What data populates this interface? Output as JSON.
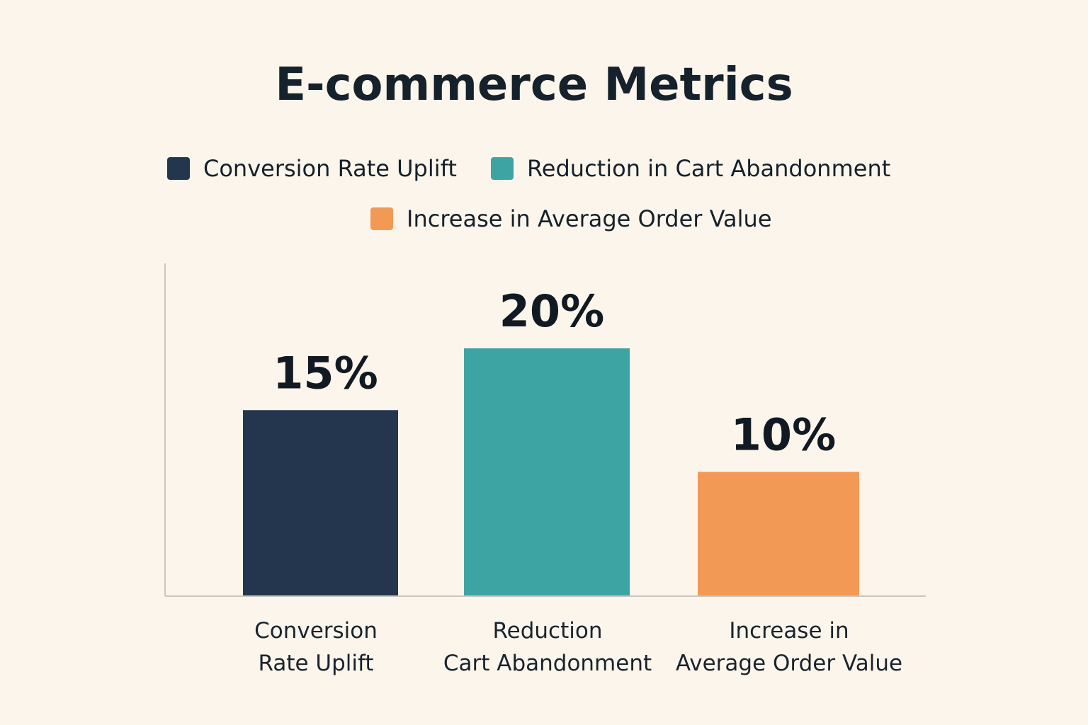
{
  "chart_data": {
    "type": "bar",
    "title": "E-commerce Metrics",
    "xlabel": "",
    "ylabel": "",
    "ylim": [
      0,
      20
    ],
    "grid": false,
    "legend_position": "top",
    "categories": [
      [
        "Conversion",
        "Rate Uplift"
      ],
      [
        "Reduction",
        "Cart Abandonment"
      ],
      [
        "Increase in",
        "Average Order Value"
      ]
    ],
    "values": [
      15,
      20,
      10
    ],
    "value_labels": [
      "15%",
      "20%",
      "10%"
    ],
    "colors": [
      "#24364e",
      "#3ea3a3",
      "#f29a55"
    ],
    "legend": [
      {
        "label": "Conversion Rate Uplift",
        "color": "#24364e"
      },
      {
        "label": "Reduction in Cart Abandonment",
        "color": "#3ea3a3"
      },
      {
        "label": "Increase in Average Order Value",
        "color": "#f29a55"
      }
    ]
  }
}
